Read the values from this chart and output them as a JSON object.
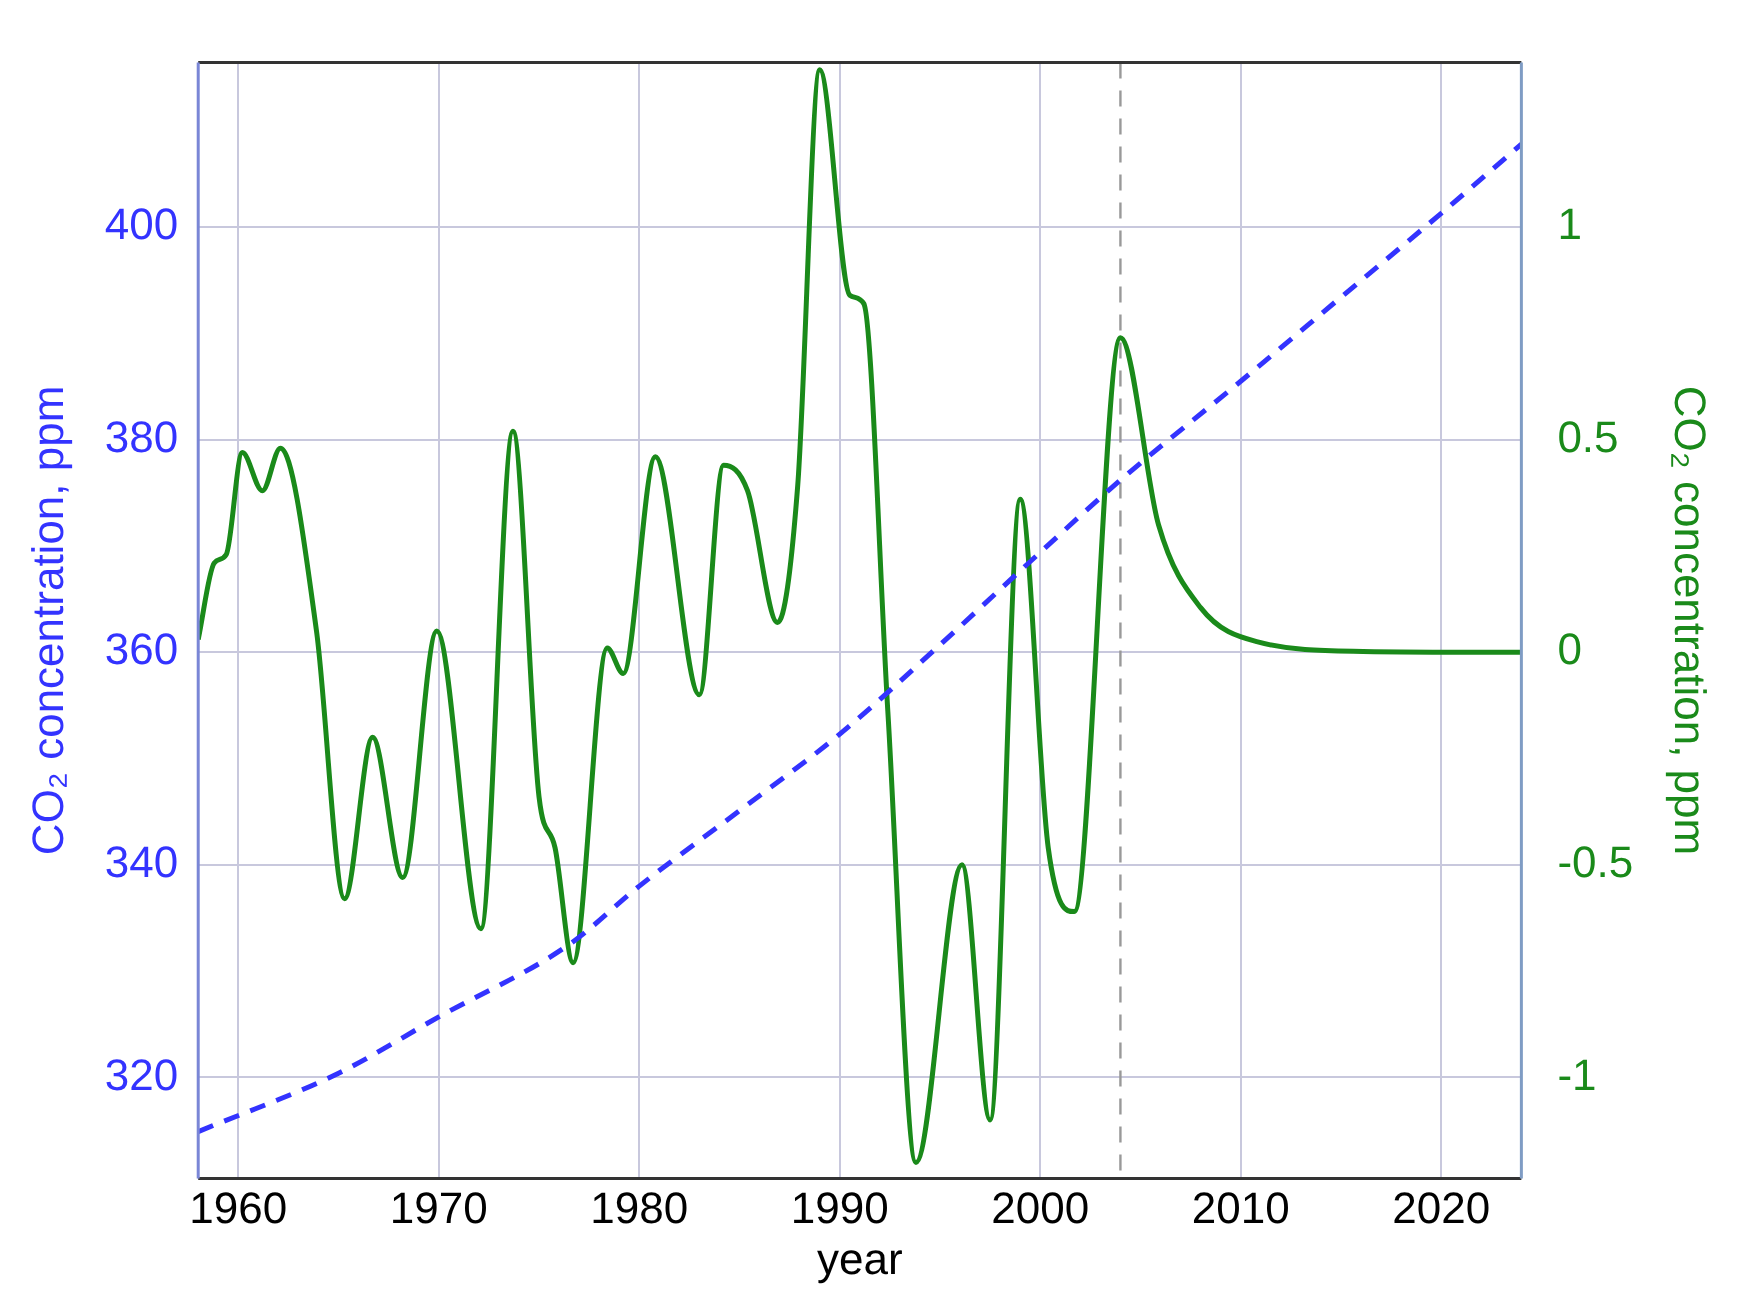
{
  "chart_data": {
    "type": "line",
    "xlabel": "year",
    "ylabel": "CO₂ concentration, ppm",
    "y2label": "CO₂ concentration, ppm",
    "xlim": [
      1958,
      2024
    ],
    "xticks": [
      1960,
      1970,
      1980,
      1990,
      2000,
      2010,
      2020
    ],
    "ylim": [
      310.5,
      415.5
    ],
    "yticks": [
      320,
      340,
      360,
      380,
      400
    ],
    "y2lim": [
      -1.2375,
      1.3875
    ],
    "y2ticks": [
      -1,
      -0.5,
      0,
      0.5,
      1
    ],
    "grid": true,
    "marker": "none",
    "ref_lines": [
      {
        "axis": "x",
        "value": 2004,
        "color": "#999999",
        "line_style": "dashed"
      }
    ],
    "series": [
      {
        "color": "#3333ff",
        "line_style": "dashed",
        "axis": "y",
        "x": [
          1958,
          1965,
          1970,
          1976.5,
          1980,
          1985,
          1990,
          1995,
          2000,
          2004,
          2010,
          2015,
          2020,
          2024
        ],
        "values": [
          314.9,
          320.4,
          325.7,
          332.5,
          338,
          345.1,
          352.3,
          360.7,
          369.4,
          376.2,
          385.5,
          393.4,
          401.3,
          407.8
        ]
      },
      {
        "color": "#1a8a1a",
        "line_style": "solid",
        "axis": "y2",
        "x": [
          1958,
          1958.8,
          1959.4,
          1960.2,
          1961.2,
          1962.1,
          1963.9,
          1965.3,
          1966.7,
          1968.2,
          1969.9,
          1972.1,
          1973.7,
          1975,
          1975.8,
          1976.7,
          1978.4,
          1979.2,
          1980.8,
          1983,
          1984.2,
          1985.4,
          1986.9,
          1987.9,
          1989,
          1990.5,
          1991.2,
          1992.4,
          1993.8,
          1996.1,
          1997.5,
          1999,
          2000.4,
          2001.7,
          2004,
          2005.9,
          2008,
          2010.8,
          2016.1,
          2024
        ],
        "values": [
          0.03,
          0.21,
          0.23,
          0.47,
          0.38,
          0.48,
          0.05,
          -0.58,
          -0.2,
          -0.53,
          0.05,
          -0.65,
          0.52,
          -0.34,
          -0.46,
          -0.73,
          0.01,
          -0.05,
          0.46,
          -0.1,
          0.44,
          0.38,
          0.07,
          0.39,
          1.37,
          0.84,
          0.82,
          -0.14,
          -1.2,
          -0.5,
          -1.1,
          0.36,
          -0.46,
          -0.61,
          0.74,
          0.3,
          0.105,
          0.025,
          0.002,
          0
        ]
      }
    ]
  }
}
